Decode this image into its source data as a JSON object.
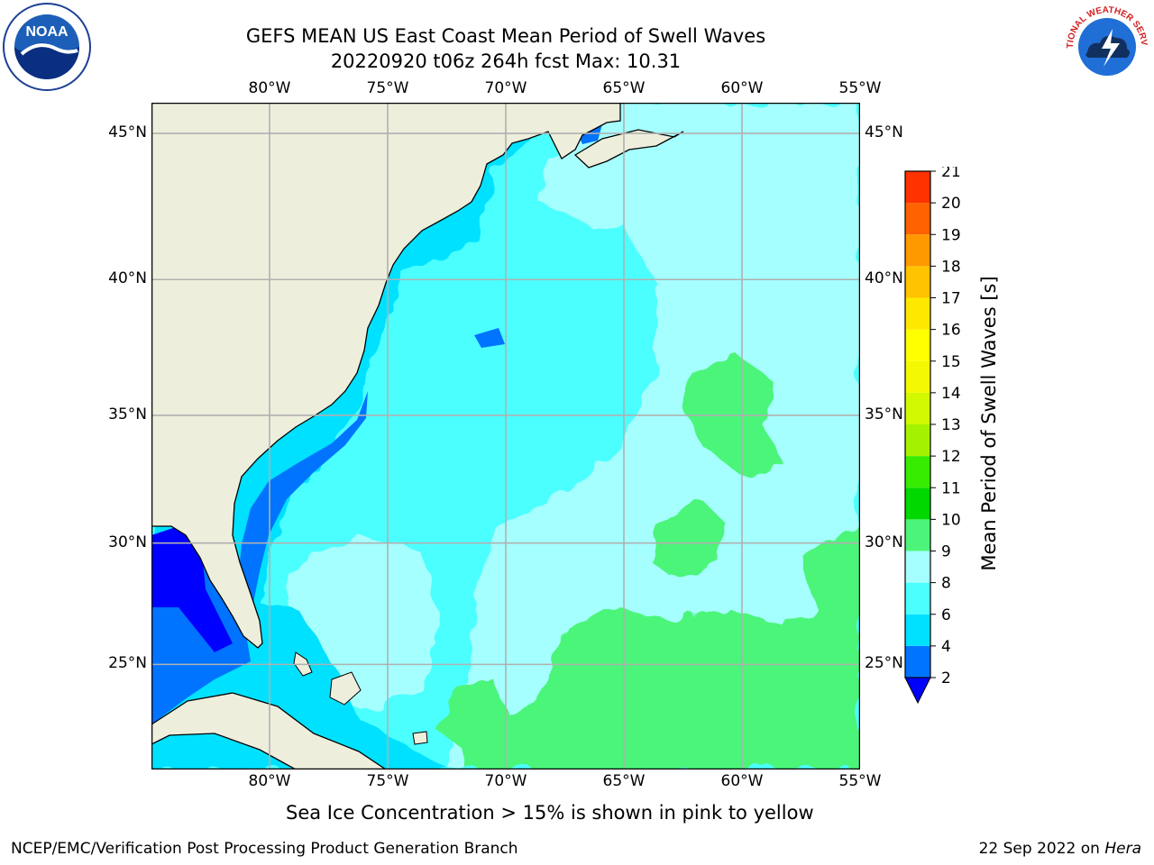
{
  "title": {
    "line1": "GEFS MEAN US East Coast Mean Period of Swell Waves",
    "line2": "20220920 t06z 264h fcst   Max: 10.31"
  },
  "map": {
    "lon_labels": [
      "80°W",
      "75°W",
      "70°W",
      "65°W",
      "60°W",
      "55°W"
    ],
    "lat_labels": [
      "45°N",
      "40°N",
      "35°N",
      "30°N",
      "25°N"
    ],
    "lon_range_deg_w": [
      85,
      55
    ],
    "lat_range_deg_n": [
      20.5,
      46
    ],
    "land_color": "#eeeedd",
    "grid_color": "#b0b0b0",
    "coast_color": "#000000"
  },
  "colorbar": {
    "label": "Mean Period of Swell Waves [s]",
    "ticks": [
      "2",
      "4",
      "6",
      "8",
      "9",
      "10",
      "11",
      "12",
      "13",
      "14",
      "15",
      "16",
      "17",
      "18",
      "19",
      "20",
      "21"
    ],
    "colors": [
      "#0073ff",
      "#00e1ff",
      "#4bffff",
      "#a6ffff",
      "#4cf57a",
      "#00d800",
      "#37ec00",
      "#a5f200",
      "#d2f900",
      "#f2f900",
      "#ffff00",
      "#ffe800",
      "#ffc300",
      "#ff9900",
      "#ff6200",
      "#ff3200",
      "#ff0000"
    ],
    "extend_min_color": "#0000ff"
  },
  "logos": {
    "noaa_text": "NOAA",
    "nws_text": "NATIONAL WEATHER SERVICE"
  },
  "footer": {
    "note": "Sea Ice Concentration > 15% is shown in pink to yellow",
    "credit": "NCEP/EMC/Verification Post Processing Product Generation Branch",
    "date_prefix": "22 Sep 2022 on ",
    "date_host": "Hera"
  }
}
